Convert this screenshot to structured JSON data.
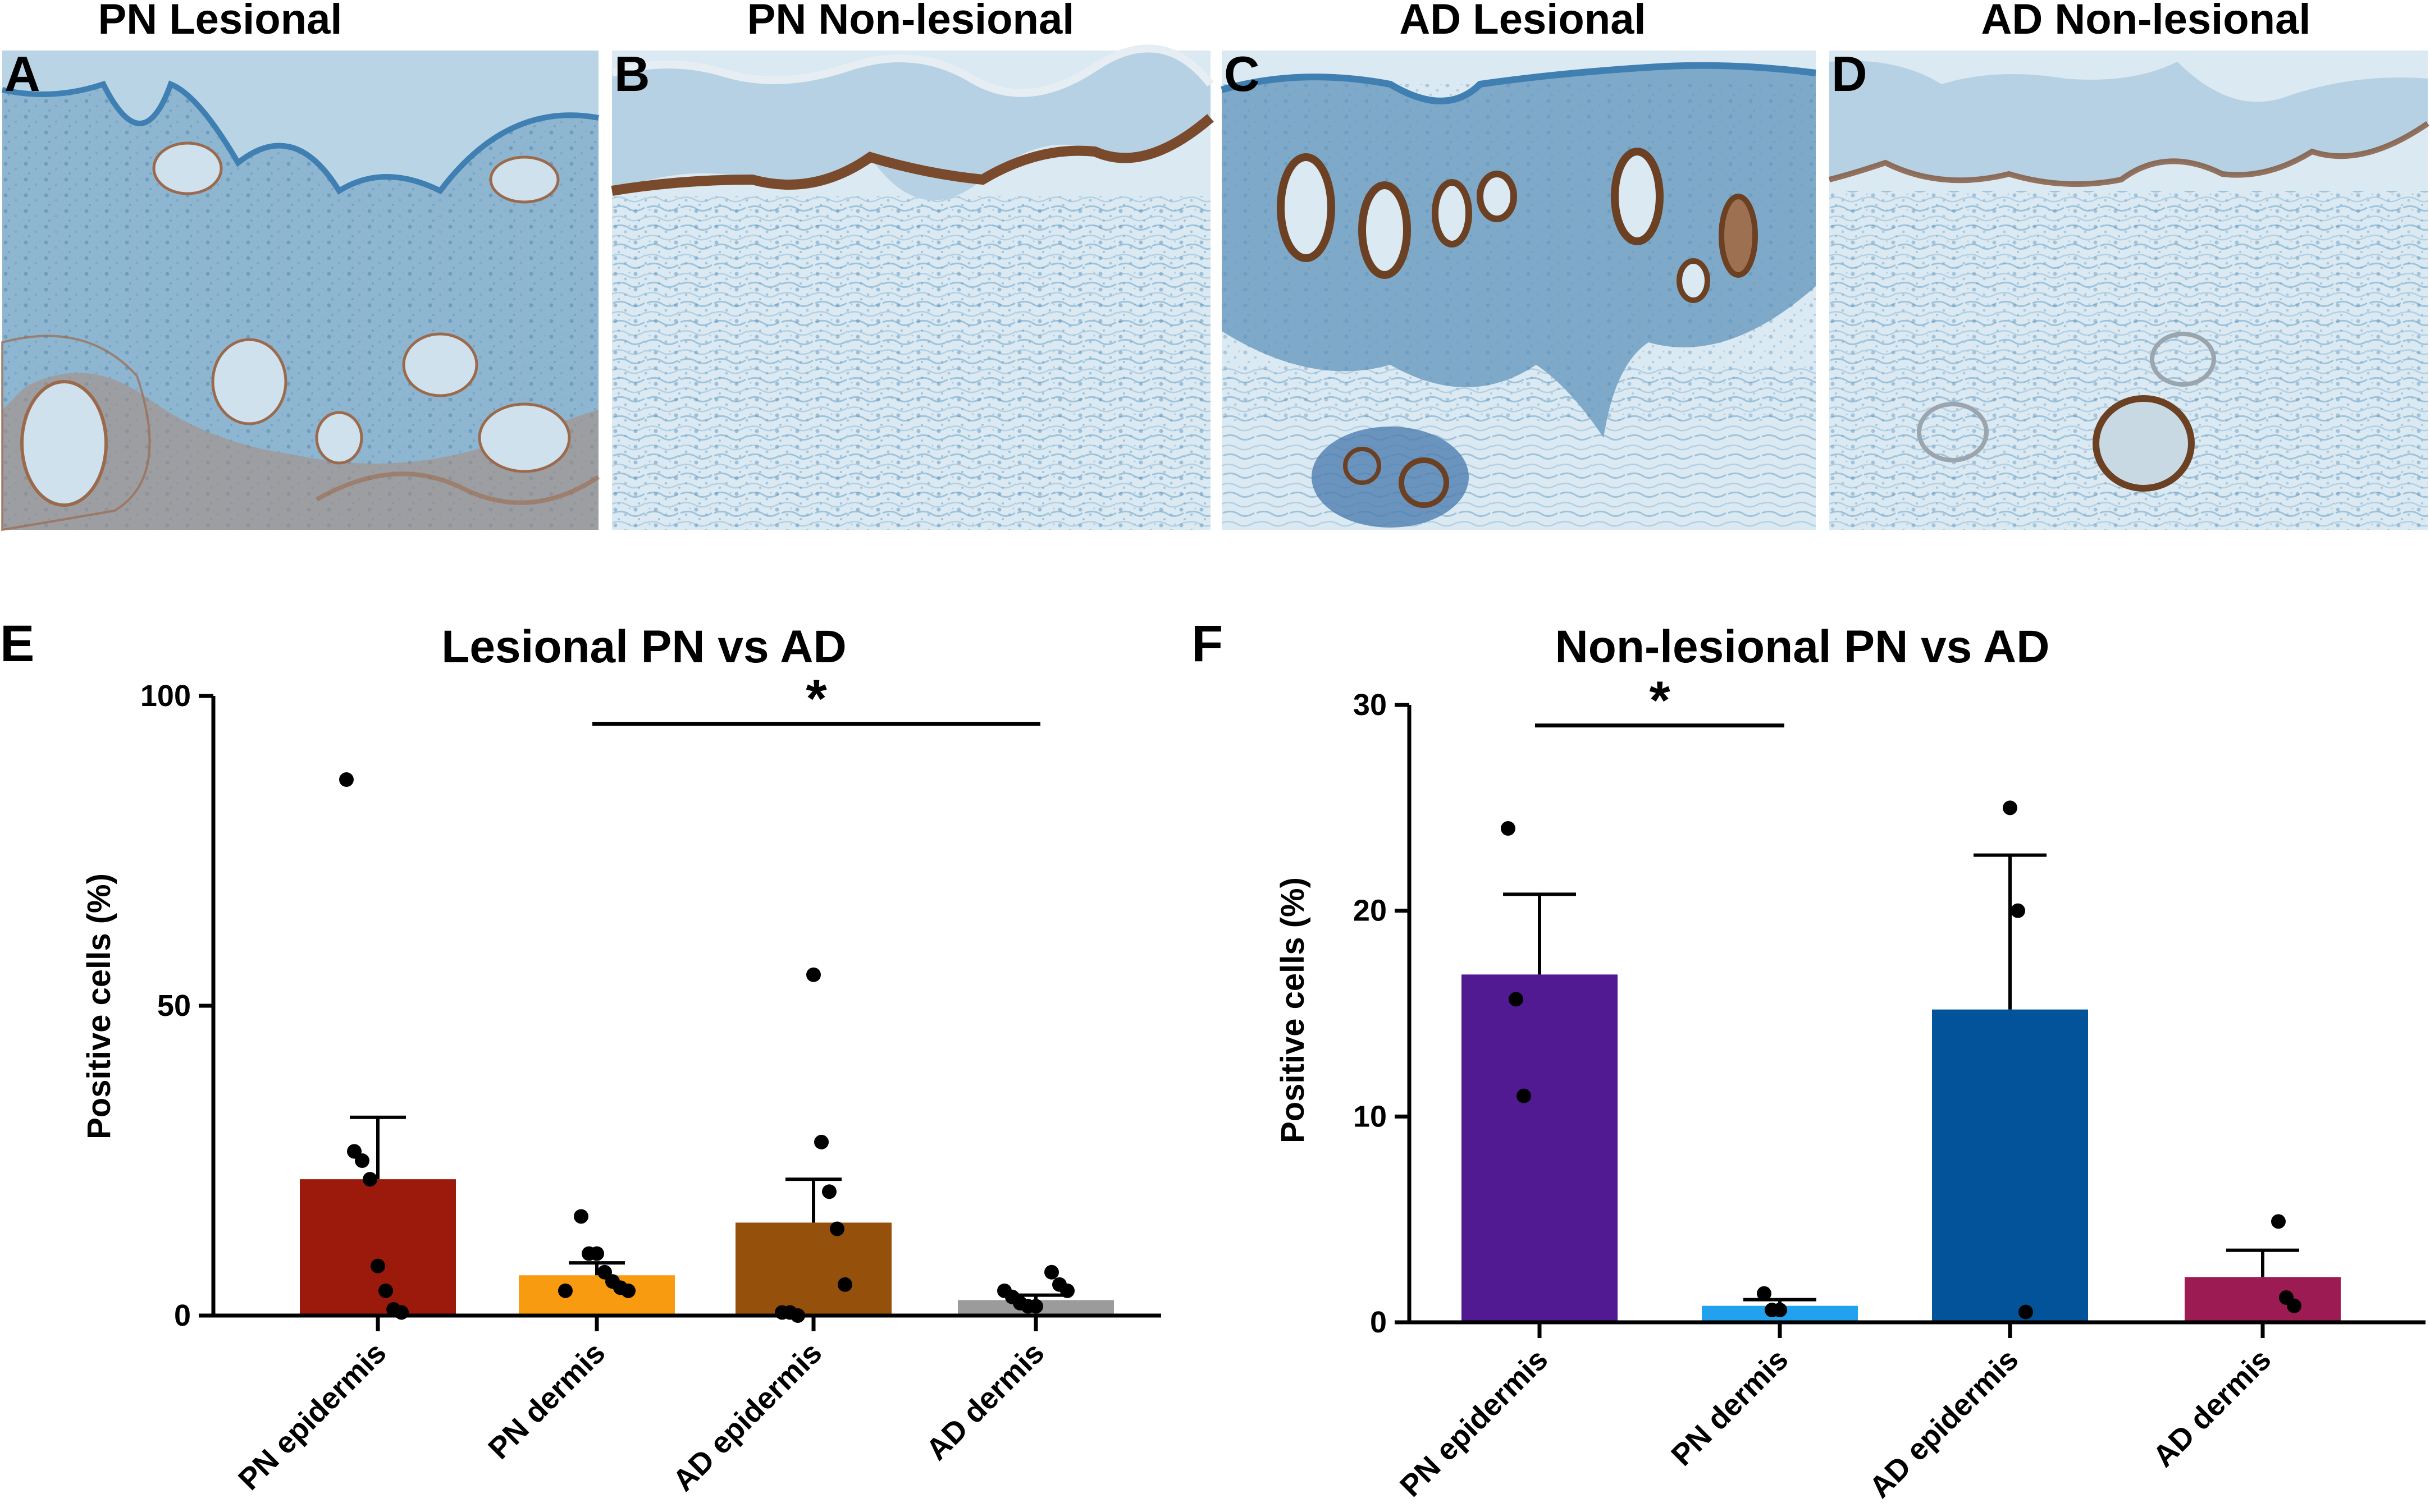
{
  "panels": [
    {
      "letter": "A",
      "title": "PN Lesional"
    },
    {
      "letter": "B",
      "title": "PN Non-lesional"
    },
    {
      "letter": "C",
      "title": "AD Lesional"
    },
    {
      "letter": "D",
      "title": "AD Non-lesional"
    }
  ],
  "tissue_colors": {
    "background": "#d8e8f1",
    "hematoxylin": "#5b93bc",
    "stain": "#8b5a3a"
  },
  "chart_data": [
    {
      "panel_letter": "E",
      "type": "bar",
      "title": "Lesional PN vs AD",
      "xlabel": "",
      "ylabel": "Positive cells (%)",
      "ylim": [
        0,
        100
      ],
      "yticks": [
        0,
        50,
        100
      ],
      "categories": [
        "PN epidermis",
        "PN dermis",
        "AD epidermis",
        "AD dermis"
      ],
      "values": [
        22,
        6.5,
        15,
        2.5
      ],
      "errors": [
        10,
        2,
        7,
        0.8
      ],
      "colors": [
        "#9c1a0c",
        "#f99b10",
        "#95510c",
        "#9b9b9b"
      ],
      "points": [
        [
          86.5,
          26.5,
          25,
          22,
          8,
          4,
          1,
          0.5
        ],
        [
          16,
          10,
          10,
          7,
          5.5,
          4.5,
          4,
          4
        ],
        [
          55,
          28,
          20,
          14,
          5,
          0.5,
          0.5,
          0
        ],
        [
          7,
          5,
          4,
          4,
          3,
          2,
          1.5,
          1.5
        ]
      ],
      "significance": {
        "from": 1,
        "to": 3,
        "y": 95.5,
        "label": "*"
      }
    },
    {
      "panel_letter": "F",
      "type": "bar",
      "title": "Non-lesional PN vs AD",
      "xlabel": "",
      "ylabel": "Positive cells (%)",
      "ylim": [
        0,
        30
      ],
      "yticks": [
        0,
        10,
        20,
        30
      ],
      "categories": [
        "PN epidermis",
        "PN dermis",
        "AD epidermis",
        "AD dermis"
      ],
      "values": [
        16.9,
        0.8,
        15.2,
        2.2
      ],
      "errors": [
        3.9,
        0.3,
        7.5,
        1.3
      ],
      "colors": [
        "#511a93",
        "#22a2ee",
        "#03539a",
        "#9c1b53"
      ],
      "points": [
        [
          24,
          15.7,
          11
        ],
        [
          1.4,
          0.6,
          0.6
        ],
        [
          25,
          20,
          0.5
        ],
        [
          4.9,
          1.2,
          0.8
        ]
      ],
      "significance": {
        "from": 0,
        "to": 1,
        "y": 29,
        "label": "*"
      }
    }
  ]
}
